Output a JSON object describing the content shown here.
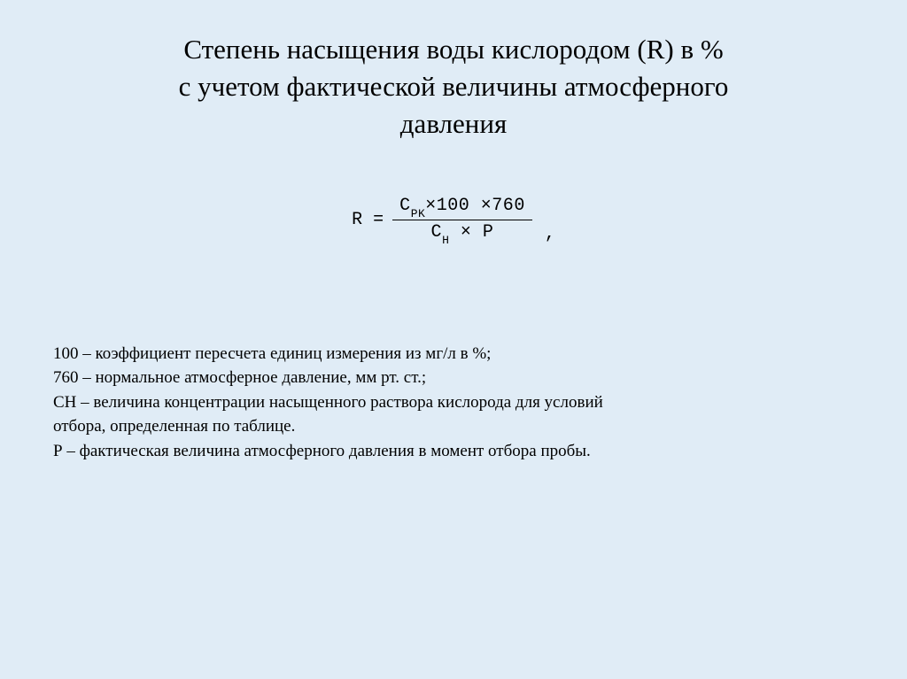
{
  "colors": {
    "background": "#e0ecf6",
    "text": "#000000"
  },
  "title": {
    "line1": "Степень насыщения воды кислородом (R) в %",
    "line2": "с учетом фактической величины атмосферного",
    "line3": "давления",
    "fontsize": 31
  },
  "formula": {
    "lhs": "R =",
    "numerator_prefix": "C",
    "numerator_sub": "PK",
    "numerator_suffix": "×100 ×760",
    "denominator_c": "C",
    "denominator_sub": "H",
    "denominator_mid": "×",
    "denominator_p": "P",
    "comma": ",",
    "fontsize": 20,
    "font": "monospace"
  },
  "definitions": {
    "fontsize": 19,
    "lines": [
      "100 – коэффициент пересчета единиц измерения из мг/л в %;",
      "760 – нормальное атмосферное давление, мм рт. ст.;",
      "СН – величина концентрации насыщенного раствора кислорода для условий",
      "отбора, определенная по таблице.",
      "Р – фактическая величина атмосферного давления в момент отбора пробы."
    ]
  }
}
